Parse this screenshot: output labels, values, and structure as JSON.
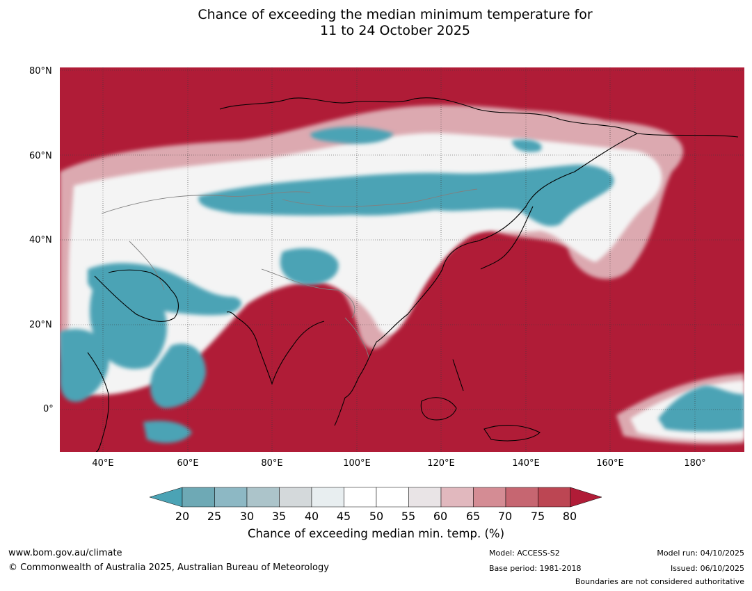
{
  "title": {
    "line1": "Chance of exceeding the median minimum temperature for",
    "line2": "11 to 24 October 2025"
  },
  "map": {
    "latitude_labels": [
      "80°N",
      "60°N",
      "40°N",
      "20°N",
      "0°"
    ],
    "longitude_labels": [
      "40°E",
      "60°E",
      "80°E",
      "100°E",
      "120°E",
      "140°E",
      "160°E",
      "180°"
    ],
    "colors": {
      "ocean_and_high": "#b01c37",
      "below_band": "#4ba3b5",
      "near_median": "#ffffff",
      "coastline": "#000000",
      "border": "#808080"
    }
  },
  "legend": {
    "ticks": [
      "20",
      "25",
      "30",
      "35",
      "40",
      "45",
      "50",
      "55",
      "60",
      "65",
      "70",
      "75",
      "80"
    ],
    "colors": [
      "#4ba3b5",
      "#6ea9b5",
      "#8db8c4",
      "#acc4ca",
      "#d4d9db",
      "#e8eef0",
      "#ffffff",
      "#ffffff",
      "#e9e4e6",
      "#e1b8be",
      "#d48c94",
      "#c66671",
      "#bc4653",
      "#b01c37"
    ],
    "label": "Chance of exceeding median min. temp. (%)"
  },
  "footer": {
    "website": "www.bom.gov.au/climate",
    "copyright": "© Commonwealth of Australia 2025, Australian Bureau of Meteorology",
    "model": "Model: ACCESS-S2",
    "base_period": "Base period: 1981-2018",
    "model_run": "Model run: 04/10/2025",
    "issued": "Issued: 06/10/2025",
    "boundaries_note": "Boundaries are not considered authoritative"
  }
}
